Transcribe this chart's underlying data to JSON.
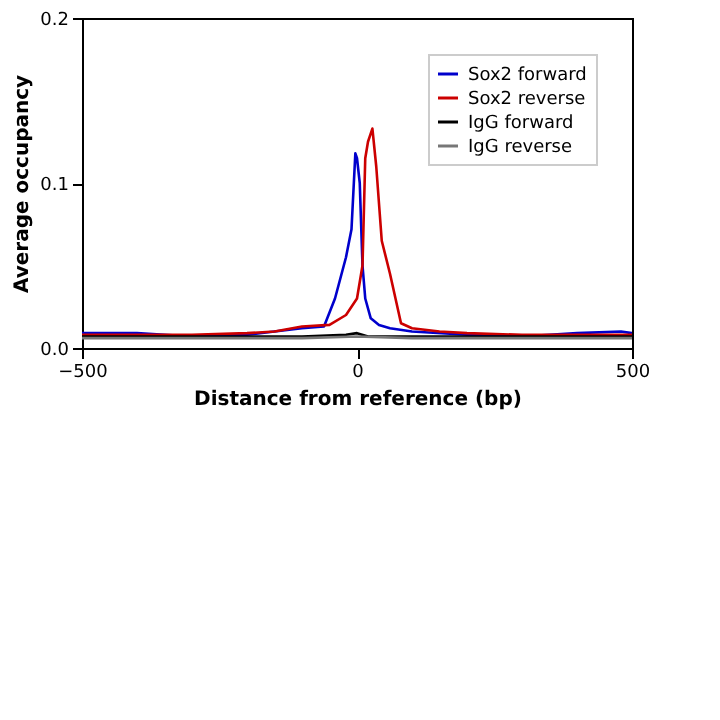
{
  "chart_data": {
    "type": "line",
    "xlabel": "Distance from reference (bp)",
    "ylabel": "Average occupancy",
    "xlim": [
      -500,
      500
    ],
    "xticks": [
      {
        "value": -500,
        "label": "−500"
      },
      0,
      500
    ],
    "ylim": [
      0,
      0.2
    ],
    "yticks": [
      {
        "value": 0,
        "label": "0.0"
      },
      0.1,
      0.2
    ],
    "grid": false,
    "legend": "top right",
    "marker": "none",
    "line_style": "solid",
    "series": [
      {
        "name": "Sox2 forward",
        "color": "#0000cc",
        "x": [
          -500,
          -400,
          -300,
          -200,
          -150,
          -100,
          -60,
          -40,
          -20,
          -10,
          -3,
          0,
          5,
          10,
          15,
          25,
          40,
          60,
          100,
          200,
          300,
          400,
          480,
          500
        ],
        "values": [
          0.009,
          0.009,
          0.007,
          0.008,
          0.01,
          0.012,
          0.013,
          0.03,
          0.055,
          0.072,
          0.118,
          0.115,
          0.1,
          0.05,
          0.03,
          0.018,
          0.014,
          0.012,
          0.01,
          0.008,
          0.007,
          0.009,
          0.01,
          0.009
        ]
      },
      {
        "name": "Sox2 reverse",
        "color": "#cc0000",
        "x": [
          -500,
          -400,
          -300,
          -200,
          -150,
          -100,
          -50,
          -20,
          0,
          10,
          15,
          20,
          28,
          35,
          45,
          60,
          80,
          100,
          150,
          200,
          300,
          400,
          500
        ],
        "values": [
          0.008,
          0.008,
          0.008,
          0.009,
          0.01,
          0.013,
          0.014,
          0.02,
          0.03,
          0.05,
          0.115,
          0.125,
          0.133,
          0.11,
          0.065,
          0.045,
          0.015,
          0.012,
          0.01,
          0.009,
          0.008,
          0.008,
          0.008
        ]
      },
      {
        "name": "IgG forward",
        "color": "#000000",
        "x": [
          -500,
          -200,
          -100,
          -20,
          0,
          20,
          100,
          300,
          500
        ],
        "values": [
          0.007,
          0.007,
          0.007,
          0.008,
          0.009,
          0.007,
          0.007,
          0.007,
          0.007
        ]
      },
      {
        "name": "IgG reverse",
        "color": "#777777",
        "x": [
          -500,
          -200,
          -100,
          0,
          100,
          300,
          500
        ],
        "values": [
          0.006,
          0.006,
          0.006,
          0.007,
          0.006,
          0.006,
          0.006
        ]
      }
    ]
  }
}
